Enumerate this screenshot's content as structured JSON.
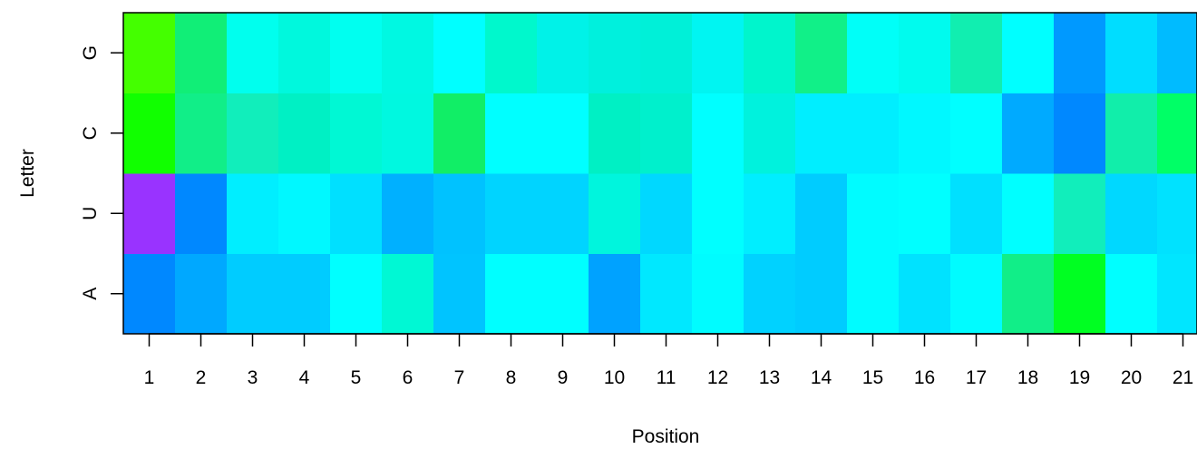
{
  "chart_data": {
    "type": "heatmap",
    "xlabel": "Position",
    "ylabel": "Letter",
    "x_categories": [
      "1",
      "2",
      "3",
      "4",
      "5",
      "6",
      "7",
      "8",
      "9",
      "10",
      "11",
      "12",
      "13",
      "14",
      "15",
      "16",
      "17",
      "18",
      "19",
      "20",
      "21"
    ],
    "y_categories": [
      "A",
      "U",
      "C",
      "G"
    ],
    "grid": false,
    "legend": "none",
    "colors": {
      "G": [
        "#44ff00",
        "#11ee77",
        "#00ffee",
        "#00f8dd",
        "#00fff0",
        "#00f8e2",
        "#00ffff",
        "#00f8cc",
        "#00f2e8",
        "#00f0dd",
        "#00f0d8",
        "#00f5f2",
        "#00f5cc",
        "#11f088",
        "#00fff8",
        "#00fbee",
        "#11eeb0",
        "#00ffff",
        "#0099ff",
        "#00ddff",
        "#00bbff"
      ],
      "C": [
        "#11ff00",
        "#11ee88",
        "#11eebb",
        "#00f0c4",
        "#00f8d4",
        "#00f8e0",
        "#11ee66",
        "#00ffff",
        "#00ffff",
        "#00f0c4",
        "#00f0cc",
        "#00ffff",
        "#00f2dd",
        "#00eeff",
        "#00eeff",
        "#00f8ff",
        "#00ffff",
        "#00aaff",
        "#0088ff",
        "#11eeaa",
        "#00ff66"
      ],
      "U": [
        "#9933ff",
        "#0088ff",
        "#00eeff",
        "#00f8ff",
        "#00e0ff",
        "#00b0ff",
        "#00c2ff",
        "#00d4ff",
        "#00d4ff",
        "#00f5dd",
        "#00d8ff",
        "#00ffff",
        "#00eeff",
        "#00ccff",
        "#00fcff",
        "#00ffff",
        "#00e0ff",
        "#00ffff",
        "#11eebb",
        "#00d8ff",
        "#00e2ff"
      ],
      "A": [
        "#0088ff",
        "#00a8ff",
        "#00ccff",
        "#00ccff",
        "#00ffff",
        "#00f8d4",
        "#00c4ff",
        "#00ffff",
        "#00ffff",
        "#00a2ff",
        "#00e8ff",
        "#00fcff",
        "#00d2ff",
        "#00ccff",
        "#00fcff",
        "#00e2ff",
        "#00fcff",
        "#11ee88",
        "#00ff22",
        "#00ffff",
        "#00e6ff"
      ]
    }
  }
}
